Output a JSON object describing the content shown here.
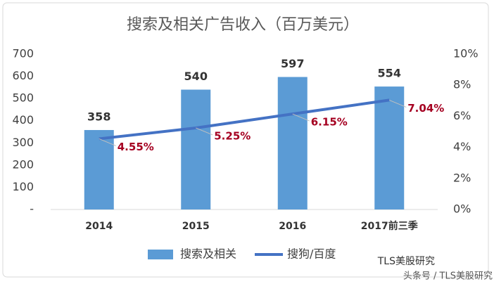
{
  "chart_data": {
    "type": "combo",
    "title": "搜索及相关广告收入（百万美元）",
    "categories": [
      "2014",
      "2015",
      "2016",
      "2017前三季"
    ],
    "series": [
      {
        "name": "搜索及相关",
        "type": "bar",
        "color": "#5b9bd5",
        "values": [
          358,
          540,
          597,
          554
        ]
      },
      {
        "name": "搜狗/百度",
        "type": "line",
        "axis": "y2",
        "color": "#4472c4",
        "values": [
          4.55,
          5.25,
          6.15,
          7.04
        ],
        "value_labels": [
          "4.55%",
          "5.25%",
          "6.15%",
          "7.04%"
        ]
      }
    ],
    "ylim": [
      0,
      700
    ],
    "yticks": [
      {
        "value": 0,
        "label": "-"
      },
      100,
      200,
      300,
      400,
      500,
      600,
      700
    ],
    "y2lim": [
      0,
      10
    ],
    "y2ticks": [
      {
        "value": 0,
        "label": "0%"
      },
      {
        "value": 2,
        "label": "2%"
      },
      {
        "value": 4,
        "label": "4%"
      },
      {
        "value": 6,
        "label": "6%"
      },
      {
        "value": 8,
        "label": "8%"
      },
      {
        "value": 10,
        "label": "10%"
      }
    ],
    "legend": "bottom",
    "annotations": [
      "TLS美股研究",
      "头条号 / TLS美股研究"
    ]
  }
}
